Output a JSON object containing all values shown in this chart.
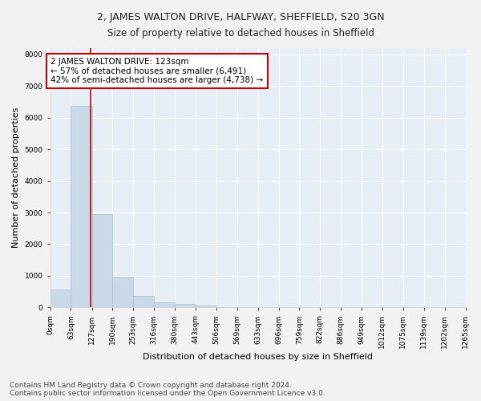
{
  "title": "2, JAMES WALTON DRIVE, HALFWAY, SHEFFIELD, S20 3GN",
  "subtitle": "Size of property relative to detached houses in Sheffield",
  "xlabel": "Distribution of detached houses by size in Sheffield",
  "ylabel": "Number of detached properties",
  "bar_color": "#c9d9e8",
  "bar_edge_color": "#a8bfcf",
  "bg_color": "#e8eef5",
  "fig_bg_color": "#f2f2f2",
  "grid_color": "#ffffff",
  "annotation_box_color": "#cc0000",
  "annotation_line_color": "#cc0000",
  "property_size": 123,
  "annotation_text_line1": "2 JAMES WALTON DRIVE: 123sqm",
  "annotation_text_line2": "← 57% of detached houses are smaller (6,491)",
  "annotation_text_line3": "42% of semi-detached houses are larger (4,738) →",
  "bin_edges": [
    0,
    63,
    127,
    190,
    253,
    316,
    380,
    443,
    506,
    569,
    633,
    696,
    759,
    822,
    886,
    949,
    1012,
    1075,
    1139,
    1202,
    1265
  ],
  "bin_labels": [
    "0sqm",
    "63sqm",
    "127sqm",
    "190sqm",
    "253sqm",
    "316sqm",
    "380sqm",
    "443sqm",
    "506sqm",
    "569sqm",
    "633sqm",
    "696sqm",
    "759sqm",
    "822sqm",
    "886sqm",
    "949sqm",
    "1012sqm",
    "1075sqm",
    "1139sqm",
    "1202sqm",
    "1265sqm"
  ],
  "bar_heights": [
    570,
    6380,
    2950,
    960,
    360,
    170,
    100,
    60,
    0,
    0,
    0,
    0,
    0,
    0,
    0,
    0,
    0,
    0,
    0,
    0
  ],
  "ylim": [
    0,
    8200
  ],
  "yticks": [
    0,
    1000,
    2000,
    3000,
    4000,
    5000,
    6000,
    7000,
    8000
  ],
  "footnote_line1": "Contains HM Land Registry data © Crown copyright and database right 2024.",
  "footnote_line2": "Contains public sector information licensed under the Open Government Licence v3.0.",
  "title_fontsize": 9,
  "subtitle_fontsize": 8.5,
  "axis_label_fontsize": 8,
  "tick_fontsize": 6.5,
  "annotation_fontsize": 7.5,
  "footnote_fontsize": 6.5
}
